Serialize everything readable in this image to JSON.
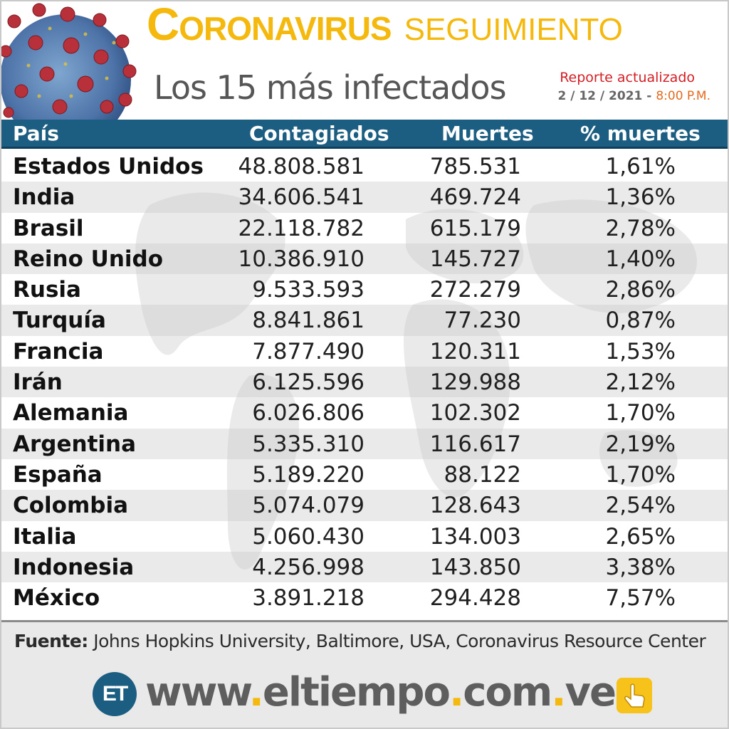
{
  "header": {
    "title_c": "C",
    "title_rest": "ORONAVIRUS",
    "title_tag": "SEGUIMIENTO",
    "subtitle": "Los 15 más infectados",
    "report_label": "Reporte actualizado",
    "report_date": "2 / 12 / 2021 -",
    "report_time": "8:00 P.M."
  },
  "chart_data": {
    "type": "table",
    "columns": [
      "País",
      "Contagiados",
      "Muertes",
      "% muertes"
    ],
    "rows": [
      [
        "Estados Unidos",
        "48.808.581",
        "785.531",
        "1,61%"
      ],
      [
        "India",
        "34.606.541",
        "469.724",
        "1,36%"
      ],
      [
        "Brasil",
        "22.118.782",
        "615.179",
        "2,78%"
      ],
      [
        "Reino Unido",
        "10.386.910",
        "145.727",
        "1,40%"
      ],
      [
        "Rusia",
        "9.533.593",
        "272.279",
        "2,86%"
      ],
      [
        "Turquía",
        "8.841.861",
        "77.230",
        "0,87%"
      ],
      [
        "Francia",
        "7.877.490",
        "120.311",
        "1,53%"
      ],
      [
        "Irán",
        "6.125.596",
        "129.988",
        "2,12%"
      ],
      [
        "Alemania",
        "6.026.806",
        "102.302",
        "1,70%"
      ],
      [
        "Argentina",
        "5.335.310",
        "116.617",
        "2,19%"
      ],
      [
        "España",
        "5.189.220",
        "88.122",
        "1,70%"
      ],
      [
        "Colombia",
        "5.074.079",
        "128.643",
        "2,54%"
      ],
      [
        "Italia",
        "5.060.430",
        "134.003",
        "2,65%"
      ],
      [
        "Indonesia",
        "4.256.998",
        "143.850",
        "3,38%"
      ],
      [
        "México",
        "3.891.218",
        "294.428",
        "7,57%"
      ]
    ]
  },
  "footer": {
    "source_label": "Fuente:",
    "source_text": "Johns Hopkins University, Baltimore, USA, Coronavirus Resource Center",
    "logo_text": "ET",
    "url_parts": [
      "www",
      ".",
      "eltiempo",
      ".",
      "com",
      ".",
      "ve"
    ]
  },
  "icons": {
    "virus": "coronavirus-illustration-icon",
    "hand": "hand-pointer-icon",
    "map": "world-map-watermark"
  },
  "colors": {
    "accent_yellow": "#f5b80c",
    "header_blue": "#1c5d82",
    "report_red": "#d41d24",
    "time_orange": "#e46a1f"
  }
}
